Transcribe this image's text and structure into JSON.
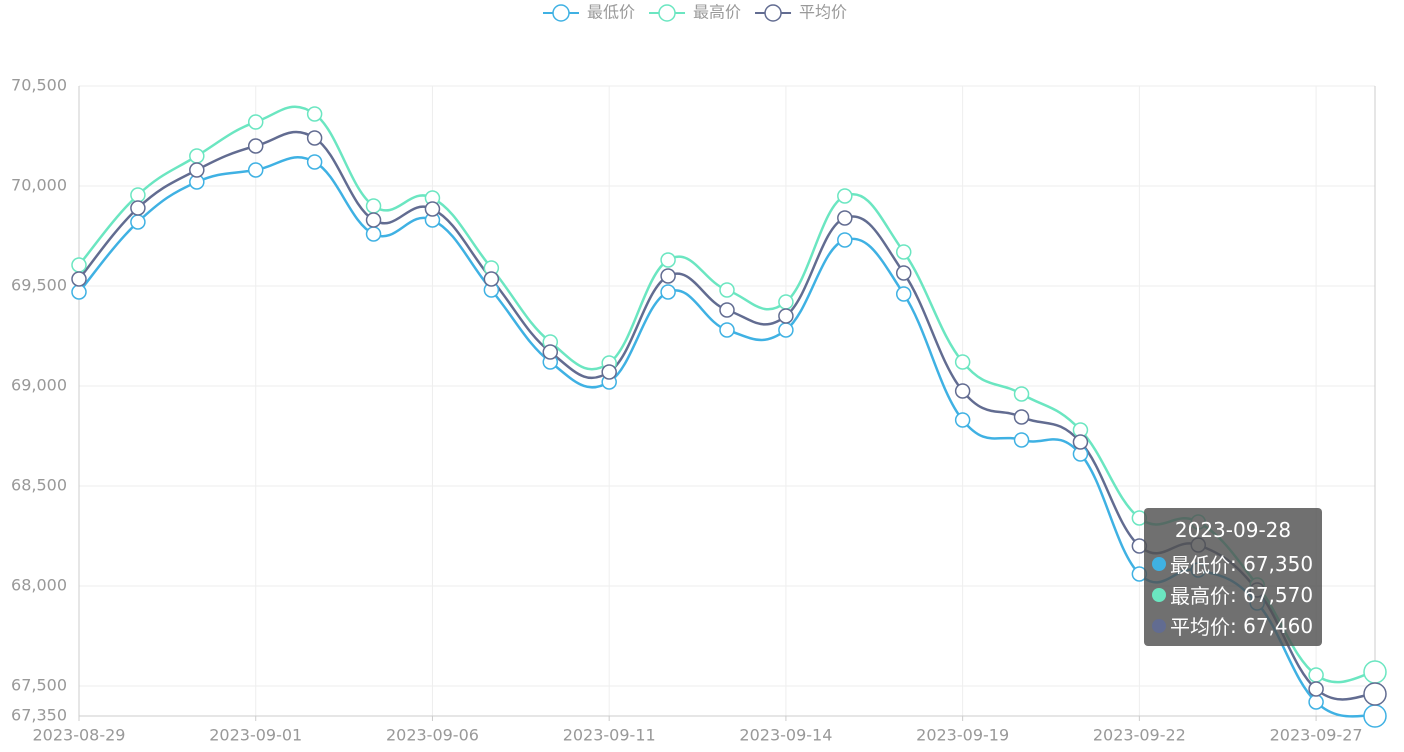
{
  "chart_data": {
    "type": "line",
    "categories": [
      "2023-08-29",
      null,
      null,
      "2023-09-01",
      null,
      null,
      "2023-09-06",
      null,
      null,
      "2023-09-11",
      null,
      null,
      "2023-09-14",
      null,
      null,
      "2023-09-19",
      null,
      null,
      "2023-09-22",
      null,
      null,
      "2023-09-27",
      null
    ],
    "series": [
      {
        "name": "最低价",
        "color": "#3fb1e3",
        "values": [
          69470,
          69820,
          70020,
          70080,
          70120,
          69760,
          69830,
          69480,
          69120,
          69020,
          69470,
          69280,
          69280,
          69730,
          69460,
          68830,
          68730,
          68660,
          68060,
          68080,
          67915,
          67420,
          67350
        ]
      },
      {
        "name": "最高价",
        "color": "#6be6c1",
        "values": [
          69605,
          69955,
          70150,
          70320,
          70360,
          69900,
          69940,
          69590,
          69220,
          69115,
          69630,
          69480,
          69420,
          69950,
          69670,
          69120,
          68960,
          68780,
          68340,
          68320,
          68005,
          67555,
          67570
        ]
      },
      {
        "name": "平均价",
        "color": "#626c91",
        "values": [
          69535,
          69890,
          70080,
          70200,
          70240,
          69830,
          69885,
          69535,
          69170,
          69070,
          69550,
          69380,
          69350,
          69840,
          69565,
          68975,
          68845,
          68720,
          68200,
          68205,
          67980,
          67485,
          67460
        ]
      }
    ],
    "ylim": [
      67350,
      70500
    ],
    "yticks": [
      {
        "value": 67350,
        "label": "67,350"
      },
      {
        "value": 67500,
        "label": "67,500"
      },
      {
        "value": 68000,
        "label": "68,000"
      },
      {
        "value": 68500,
        "label": "68,500"
      },
      {
        "value": 69000,
        "label": "69,000"
      },
      {
        "value": 69500,
        "label": "69,500"
      },
      {
        "value": 70000,
        "label": "70,000"
      },
      {
        "value": 70500,
        "label": "70,500"
      }
    ],
    "grid": true,
    "legend": "top",
    "smooth": true,
    "tooltip": {
      "title": "2023-09-28",
      "values": [
        67350,
        67570,
        67460
      ],
      "value_labels": [
        "67,350",
        "67,570",
        "67,460"
      ]
    }
  }
}
